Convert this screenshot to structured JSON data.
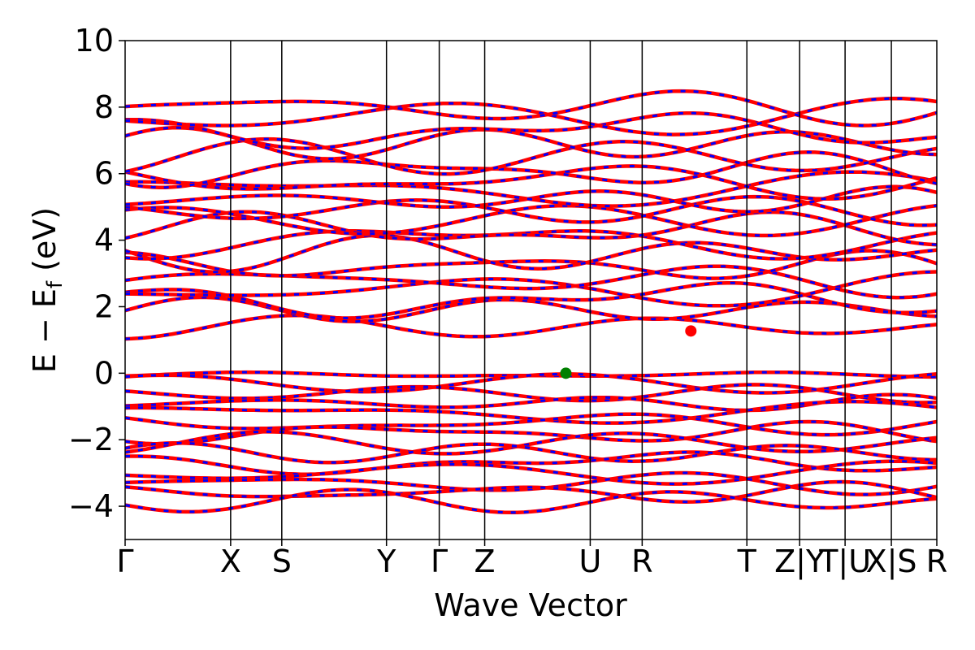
{
  "chart_data": {
    "type": "line",
    "title": "",
    "xlabel": "Wave Vector",
    "ylabel": "E − E",
    "ylabel_subscript": "f",
    "ylabel_unit": " (eV)",
    "ylim": [
      -5,
      10
    ],
    "yticks": [
      -4,
      -2,
      0,
      2,
      4,
      6,
      8,
      10
    ],
    "ytick_labels": [
      "−4",
      "−2",
      "0",
      "2",
      "4",
      "6",
      "8",
      "10"
    ],
    "xlim": [
      0,
      1
    ],
    "kpoints": [
      {
        "label": "Γ",
        "pos": 0.0
      },
      {
        "label": "X",
        "pos": 0.13
      },
      {
        "label": "S",
        "pos": 0.193
      },
      {
        "label": "Y",
        "pos": 0.322
      },
      {
        "label": "Γ",
        "pos": 0.387
      },
      {
        "label": "Z",
        "pos": 0.443
      },
      {
        "label": "U",
        "pos": 0.573
      },
      {
        "label": "R",
        "pos": 0.637
      },
      {
        "label": "T",
        "pos": 0.766
      },
      {
        "label": "Z|Y",
        "pos": 0.831
      },
      {
        "label": "T|U",
        "pos": 0.887
      },
      {
        "label": "X|S",
        "pos": 0.944
      },
      {
        "label": "R",
        "pos": 1.0
      }
    ],
    "grid": false,
    "vbm": {
      "x": 0.543,
      "y": 0.0,
      "color": "#008000"
    },
    "cbm": {
      "x": 0.697,
      "y": 1.27,
      "color": "#ff0000"
    },
    "series_colors": {
      "spin_up": "#ff0000",
      "spin_down": "#0000ff"
    },
    "conduction_band_anchors": [
      1.4,
      1.9,
      2.2,
      2.5,
      2.8,
      3.2,
      3.6,
      4.0,
      4.3,
      4.6,
      4.9,
      5.2,
      5.5,
      5.8,
      6.1,
      6.5,
      6.9,
      7.3,
      7.7,
      8.0
    ],
    "valence_band_anchors": [
      -0.05,
      -0.3,
      -0.6,
      -0.9,
      -1.2,
      -1.5,
      -1.8,
      -2.1,
      -2.4,
      -2.7,
      -3.0,
      -3.3,
      -3.6,
      -3.85
    ]
  }
}
